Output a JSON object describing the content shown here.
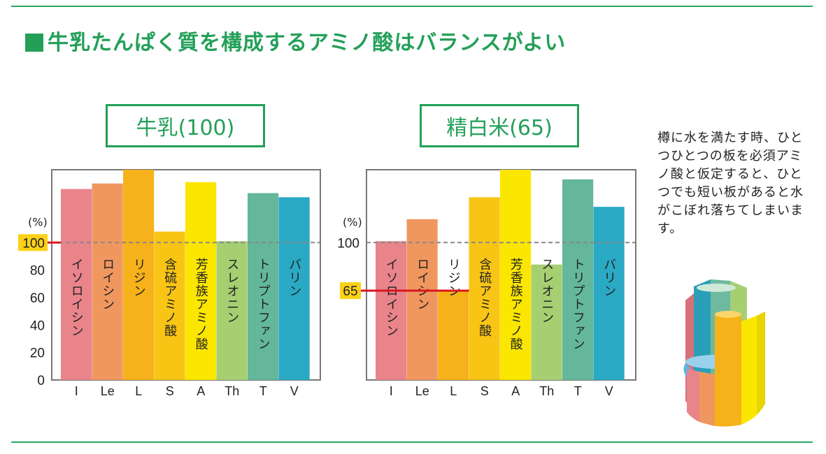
{
  "heading": "牛乳たんぱく質を構成するアミノ酸はバランスがよい",
  "note": "樽に水を満たす時、ひとつひとつの板を必須アミノ酸と仮定すると、ひとつでも短い板があると水がこぼれ落ちてしまいます。",
  "colors": {
    "accent": "#23a058",
    "limit_line": "#d9181f",
    "reference_line": "#888888",
    "highlight_label": "#fcd116"
  },
  "chart_data": [
    {
      "type": "bar",
      "title": "牛乳(100)",
      "unit_label": "(%)",
      "ylim": [
        0,
        152
      ],
      "yticks": [
        "0",
        "20",
        "40",
        "60",
        "80",
        "100"
      ],
      "reference": {
        "value": 100,
        "label": "100"
      },
      "categories": [
        "I",
        "Le",
        "L",
        "S",
        "A",
        "Th",
        "T",
        "V"
      ],
      "bar_labels": [
        "イソロイシン",
        "ロイシン",
        "リジン",
        "含硫アミノ酸",
        "芳香族アミノ酸",
        "スレオニン",
        "トリプトファン",
        "バリン"
      ],
      "values": [
        139,
        143,
        153,
        108,
        144,
        101,
        136,
        133
      ],
      "bar_colors": [
        "#e9848b",
        "#f0975f",
        "#f6b21a",
        "#f8c515",
        "#fbe600",
        "#a6cf72",
        "#64b79a",
        "#2aa9c4"
      ]
    },
    {
      "type": "bar",
      "title": "精白米(65)",
      "unit_label": "(%)",
      "ylim": [
        0,
        152
      ],
      "yticks": [
        "100"
      ],
      "reference": {
        "value": 100,
        "label": "100"
      },
      "limit": {
        "value": 65,
        "label": "65"
      },
      "categories": [
        "I",
        "Le",
        "L",
        "S",
        "A",
        "Th",
        "T",
        "V"
      ],
      "bar_labels": [
        "イソロイシン",
        "ロイシン",
        "リジン",
        "含硫アミノ酸",
        "芳香族アミノ酸",
        "スレオニン",
        "トリプトファン",
        "バリン"
      ],
      "values": [
        101,
        117,
        65,
        133,
        153,
        84,
        146,
        126
      ],
      "bar_colors": [
        "#e9848b",
        "#f0975f",
        "#f6b21a",
        "#f8c515",
        "#fbe600",
        "#a6cf72",
        "#64b79a",
        "#2aa9c4"
      ]
    }
  ]
}
